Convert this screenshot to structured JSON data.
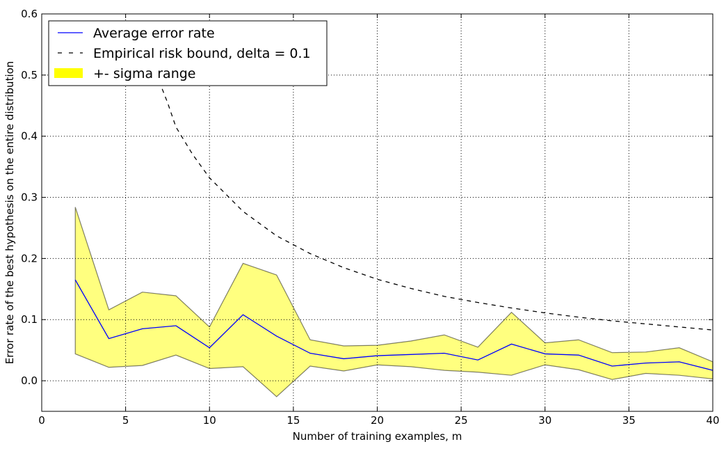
{
  "chart_data": {
    "type": "line",
    "title": "",
    "xlabel": "Number of training examples, m",
    "ylabel": "Error rate of the best hypothesis on the entire distribution",
    "xlim": [
      0,
      40
    ],
    "ylim": [
      -0.05,
      0.6
    ],
    "xticks": [
      0,
      5,
      10,
      15,
      20,
      25,
      30,
      35,
      40
    ],
    "yticks": [
      0.0,
      0.1,
      0.2,
      0.3,
      0.4,
      0.5,
      0.6
    ],
    "grid": true,
    "legend_placement": "top-left",
    "x": [
      2,
      4,
      6,
      8,
      10,
      12,
      14,
      16,
      18,
      20,
      22,
      24,
      26,
      28,
      30,
      32,
      34,
      36,
      38,
      40
    ],
    "series": [
      {
        "name": "Average error rate",
        "style": "solid",
        "color": "#0000ff",
        "values": [
          0.165,
          0.069,
          0.085,
          0.09,
          0.054,
          0.108,
          0.073,
          0.045,
          0.036,
          0.041,
          0.043,
          0.045,
          0.034,
          0.06,
          0.044,
          0.042,
          0.024,
          0.029,
          0.031,
          0.017
        ]
      },
      {
        "name": "Empirical risk bound, delta = 0.1",
        "style": "dashed",
        "color": "#000000",
        "x": [
          7,
          7.5,
          8,
          9,
          10,
          12,
          14,
          16,
          18,
          20,
          22,
          24,
          26,
          28,
          30,
          32,
          34,
          36,
          38,
          40
        ],
        "values": [
          0.49,
          0.455,
          0.415,
          0.37,
          0.332,
          0.277,
          0.237,
          0.208,
          0.185,
          0.166,
          0.151,
          0.138,
          0.128,
          0.119,
          0.111,
          0.104,
          0.098,
          0.093,
          0.088,
          0.083
        ]
      }
    ],
    "band": {
      "name": "+- sigma range",
      "color": "#ffff00",
      "upper": [
        0.284,
        0.116,
        0.145,
        0.139,
        0.088,
        0.192,
        0.173,
        0.067,
        0.057,
        0.058,
        0.065,
        0.075,
        0.055,
        0.112,
        0.062,
        0.067,
        0.046,
        0.047,
        0.054,
        0.031
      ],
      "lower": [
        0.044,
        0.022,
        0.025,
        0.042,
        0.02,
        0.023,
        -0.026,
        0.024,
        0.016,
        0.026,
        0.023,
        0.017,
        0.014,
        0.009,
        0.026,
        0.018,
        0.002,
        0.012,
        0.009,
        0.003
      ]
    }
  }
}
